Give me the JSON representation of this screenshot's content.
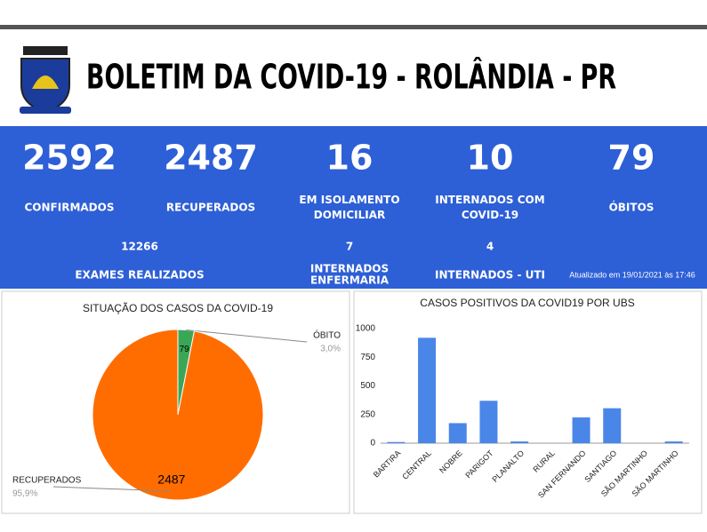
{
  "header": {
    "title": "BOLETIM DA COVID-19 - ROLÂNDIA - PR"
  },
  "stats": [
    {
      "value": 2592,
      "label_lines": [
        "CONFIRMADOS"
      ]
    },
    {
      "value": 2487,
      "label_lines": [
        "RECUPERADOS"
      ]
    },
    {
      "value": 16,
      "label_lines": [
        "EM ISOLAMENTO",
        "DOMICILIAR"
      ]
    },
    {
      "value": 10,
      "label_lines": [
        "INTERNADOS COM",
        "COVID-19"
      ]
    },
    {
      "value": 79,
      "label_lines": [
        "ÓBITOS"
      ]
    }
  ],
  "secondary_stats": [
    {
      "value": 12266,
      "label_lines": [
        "EXAMES REALIZADOS"
      ]
    },
    {
      "value": 7,
      "label_lines": [
        "INTERNADOS",
        "ENFERMARIA"
      ]
    },
    {
      "value": 4,
      "label_lines": [
        "INTERNADOS - UTI"
      ]
    }
  ],
  "updated": "Atualizado em 19/01/2021 às 17:46",
  "chart_data": [
    {
      "type": "pie",
      "title": "SITUAÇÃO DOS CASOS DA COVID-19",
      "slices": [
        {
          "name": "ÓBITO",
          "value": 79,
          "percent": 3.0,
          "percent_label": "3,0%",
          "color": "#3aa757"
        },
        {
          "name": "RECUPERADOS",
          "value": 2487,
          "percent": 95.9,
          "percent_label": "95,9%",
          "color": "#ff6d01"
        }
      ]
    },
    {
      "type": "bar",
      "title": "CASOS POSITIVOS DA COVID19 POR UBS",
      "categories": [
        "BARTIRA",
        "CENTRAL",
        "NOBRE",
        "PARIGOT",
        "PLANALTO",
        "RURAL",
        "SAN FERNANDO",
        "SANTIAGO",
        "SÃO MARTINHO",
        "SÃO MARTINHO"
      ],
      "values": [
        10,
        920,
        175,
        370,
        15,
        0,
        225,
        305,
        0,
        15
      ],
      "color": "#4a86e8",
      "ylim": [
        0,
        1000
      ],
      "yticks": [
        0,
        250,
        500,
        750,
        1000
      ],
      "grid": false
    }
  ]
}
